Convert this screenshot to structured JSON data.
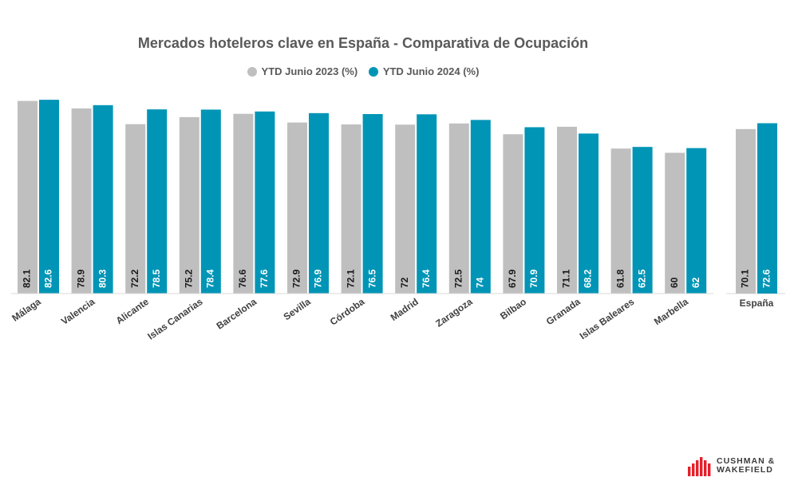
{
  "chart_data": {
    "type": "bar",
    "title": "Mercados hoteleros clave en España - Comparativa de Ocupación",
    "categories": [
      "Málaga",
      "Valencia",
      "Alicante",
      "Islas Canarias",
      "Barcelona",
      "Sevilla",
      "Córdoba",
      "Madrid",
      "Zaragoza",
      "Bilbao",
      "Granada",
      "Islas Baleares",
      "Marbella"
    ],
    "series": [
      {
        "name": "YTD Junio 2023 (%)",
        "color": "#bfbfbf",
        "values": [
          82.1,
          78.9,
          72.2,
          75.2,
          76.6,
          72.9,
          72.1,
          72,
          72.5,
          67.9,
          71.1,
          61.8,
          60
        ]
      },
      {
        "name": "YTD Junio 2024 (%)",
        "color": "#0095b6",
        "values": [
          82.6,
          80.3,
          78.5,
          78.4,
          77.6,
          76.9,
          76.5,
          76.4,
          74,
          70.9,
          68.2,
          62.5,
          62
        ]
      }
    ],
    "summary": {
      "category": "España",
      "values": [
        70.1,
        72.6
      ]
    },
    "ylim": [
      0,
      85
    ],
    "grid": false,
    "legend_position": "top"
  },
  "brand": {
    "line1": "CUSHMAN &",
    "line2": "WAKEFIELD",
    "color": "#e4202a"
  }
}
